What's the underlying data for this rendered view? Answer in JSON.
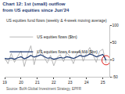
{
  "chart_data": {
    "type": "line",
    "title": "Chart 12: 1st (small) outflow from US equities since Jun'24",
    "subtitle": "US equities fund flows (weekly & 4-week moving average)",
    "source": "Source: BofA Global Investment Strategy, EPFR",
    "x": [
      2019.0,
      2019.2,
      2019.4,
      2019.6,
      2019.8,
      2020.0,
      2020.2,
      2020.4,
      2020.6,
      2020.8,
      2021.0,
      2021.2,
      2021.4,
      2021.6,
      2021.8,
      2022.0,
      2022.2,
      2022.4,
      2022.6,
      2022.8,
      2023.0,
      2023.2,
      2023.4,
      2023.6,
      2023.8,
      2024.0,
      2024.2,
      2024.4,
      2024.6,
      2024.8,
      2025.0,
      2025.2
    ],
    "series": [
      {
        "name": "US equities flows ($bn)",
        "color": "#a6a6a6",
        "values": [
          5,
          -12,
          18,
          -8,
          10,
          25,
          -20,
          15,
          40,
          -15,
          22,
          30,
          8,
          -10,
          12,
          -18,
          6,
          14,
          -6,
          20,
          9,
          -12,
          16,
          28,
          -5,
          18,
          35,
          12,
          -8,
          24,
          30,
          -10
        ]
      },
      {
        "name": "US equities flows 4-week MA ($bn)",
        "color": "#1f3b73",
        "values": [
          3,
          2,
          4,
          1,
          5,
          8,
          2,
          6,
          12,
          7,
          10,
          14,
          9,
          4,
          5,
          1,
          3,
          6,
          4,
          8,
          6,
          3,
          7,
          12,
          9,
          11,
          16,
          13,
          8,
          12,
          15,
          -2
        ]
      }
    ],
    "xlim": [
      2019,
      2025.4
    ],
    "xticks": [
      {
        "value": 2019,
        "label": "19"
      },
      {
        "value": 2020,
        "label": "20"
      },
      {
        "value": 2021,
        "label": "21"
      },
      {
        "value": 2022,
        "label": "22"
      },
      {
        "value": 2023,
        "label": "23"
      },
      {
        "value": 2024,
        "label": "24"
      },
      {
        "value": 2025,
        "label": "25"
      }
    ],
    "ylim": [
      -50,
      100
    ],
    "yticks": [
      -50,
      0,
      50,
      100
    ],
    "legend": "upper left",
    "grid": false
  }
}
